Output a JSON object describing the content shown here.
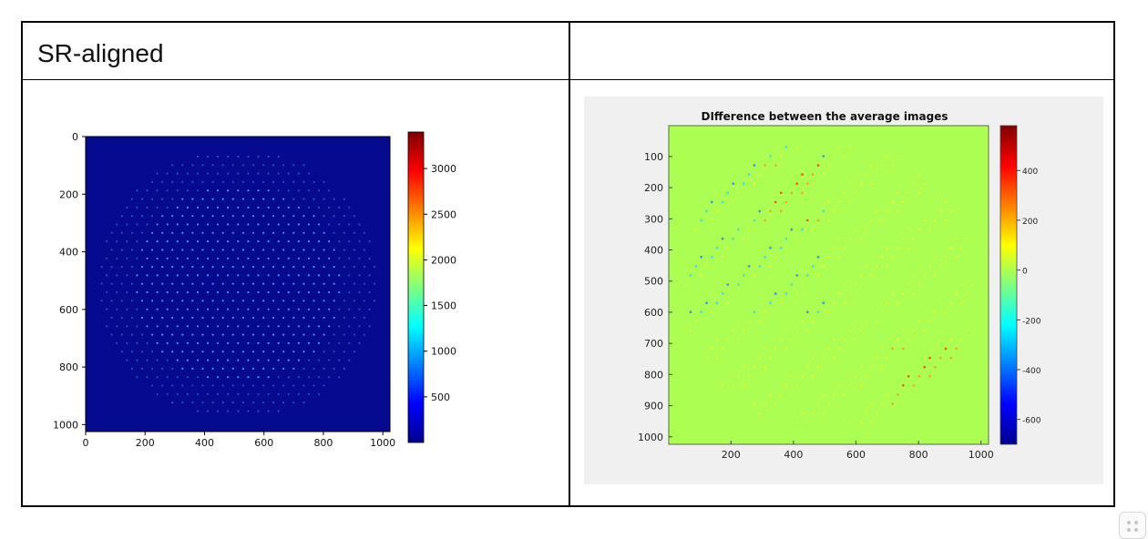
{
  "table": {
    "header_left": "SR-aligned",
    "header_right": ""
  },
  "chart_data": [
    {
      "type": "heatmap",
      "title": "",
      "xlabel": "",
      "ylabel": "",
      "x_ticks": [
        "0",
        "200",
        "400",
        "600",
        "800",
        "1000"
      ],
      "y_ticks": [
        "0",
        "200",
        "400",
        "600",
        "800",
        "1000"
      ],
      "xlim": [
        0,
        1024
      ],
      "ylim": [
        0,
        1024
      ],
      "y_inverted": true,
      "colormap": "jet",
      "colorbar": {
        "ticks": [
          "500",
          "1000",
          "1500",
          "2000",
          "2500",
          "3000"
        ],
        "range": [
          0,
          3400
        ]
      },
      "grid": false,
      "background_value": 50,
      "spot_value": 2000,
      "colors": {
        "background": "#050a8f",
        "spot": "#48a6ff"
      }
    },
    {
      "type": "heatmap",
      "title": "DIfference between the average images",
      "xlabel": "",
      "ylabel": "",
      "x_ticks": [
        "200",
        "400",
        "600",
        "800",
        "1000"
      ],
      "y_ticks": [
        "100",
        "200",
        "300",
        "400",
        "500",
        "600",
        "700",
        "800",
        "900",
        "1000"
      ],
      "xlim": [
        1,
        1024
      ],
      "ylim": [
        1,
        1024
      ],
      "y_inverted": true,
      "colormap": "jet",
      "colorbar": {
        "ticks": [
          "400",
          "200",
          "0",
          "-200",
          "-400",
          "-600"
        ],
        "range": [
          -700,
          580
        ]
      },
      "grid": false,
      "background_value": 0,
      "colors": {
        "background": "#adfe53",
        "figure_bg": "#f0f0f0"
      }
    }
  ]
}
